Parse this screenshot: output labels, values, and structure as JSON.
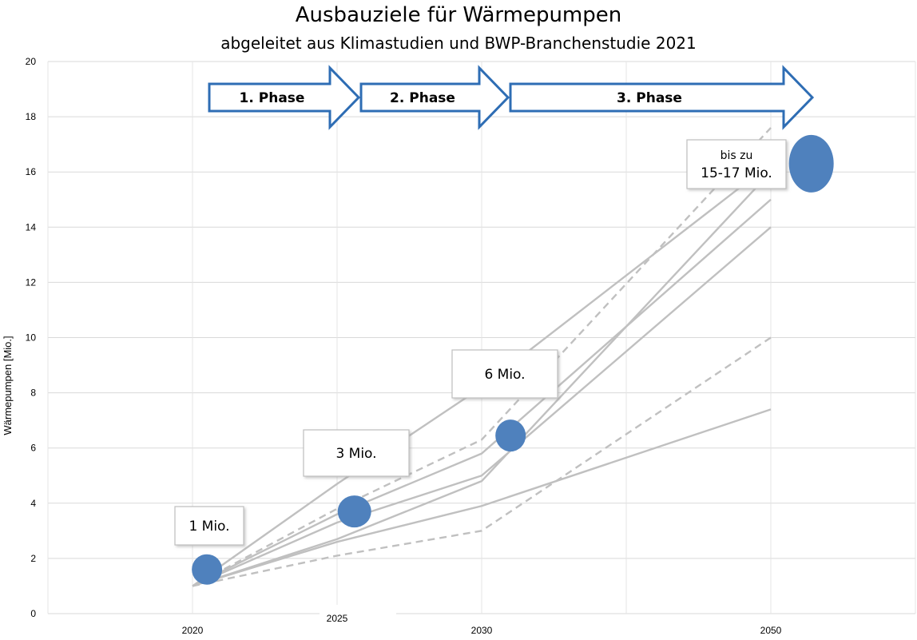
{
  "chart_data": {
    "type": "line",
    "title": "Ausbauziele für Wärmepumpen",
    "subtitle": "abgeleitet aus Klimastudien und BWP-Branchenstudie 2021",
    "ylabel": "Wärmepumpen [Mio.]",
    "xlabel": "",
    "ylim": [
      0,
      20
    ],
    "y_ticks": [
      0,
      2,
      4,
      6,
      8,
      10,
      12,
      14,
      16,
      18,
      20
    ],
    "x_ticks": [
      "2020",
      "2025",
      "2030",
      "2050"
    ],
    "grid": true,
    "series": [
      {
        "style": "solid",
        "points": [
          [
            "2020",
            1.0
          ],
          [
            "2025",
            4.7
          ],
          [
            "2030",
            8.2
          ],
          [
            "2050",
            16.3
          ]
        ]
      },
      {
        "style": "solid",
        "points": [
          [
            "2020",
            1.0
          ],
          [
            "2025",
            3.6
          ],
          [
            "2030",
            5.8
          ],
          [
            "2050",
            15.0
          ]
        ]
      },
      {
        "style": "solid",
        "points": [
          [
            "2020",
            1.0
          ],
          [
            "2025",
            3.3
          ],
          [
            "2030",
            5.0
          ],
          [
            "2050",
            14.0
          ]
        ]
      },
      {
        "style": "solid",
        "points": [
          [
            "2020",
            1.0
          ],
          [
            "2025",
            2.7
          ],
          [
            "2030",
            4.8
          ],
          [
            "2050",
            16.0
          ]
        ]
      },
      {
        "style": "solid",
        "points": [
          [
            "2020",
            1.0
          ],
          [
            "2025",
            2.6
          ],
          [
            "2030",
            3.9
          ],
          [
            "2050",
            7.4
          ]
        ]
      },
      {
        "style": "dashed",
        "points": [
          [
            "2020",
            1.0
          ],
          [
            "2025",
            3.8
          ],
          [
            "2030",
            6.3
          ],
          [
            "2050",
            17.6
          ]
        ]
      },
      {
        "style": "dashed",
        "points": [
          [
            "2020",
            1.0
          ],
          [
            "2025",
            2.1
          ],
          [
            "2030",
            3.0
          ],
          [
            "2050",
            10.0
          ]
        ]
      }
    ],
    "series_color": "#c0c0c0",
    "markers": [
      {
        "x": 2020.5,
        "y": 1.6,
        "color": "#4f81bd"
      },
      {
        "x": 2025.6,
        "y": 3.7,
        "color": "#4f81bd"
      },
      {
        "x": 2031.0,
        "y": 6.45,
        "color": "#4f81bd"
      },
      {
        "x": 2051.4,
        "y": 16.3,
        "color": "#4f81bd"
      }
    ],
    "annotations": [
      {
        "lines": [
          "1 Mio."
        ]
      },
      {
        "lines": [
          "3 Mio."
        ]
      },
      {
        "lines": [
          "6 Mio."
        ]
      },
      {
        "lines": [
          "bis zu",
          "15-17 Mio."
        ]
      }
    ],
    "phases": [
      {
        "label": "1. Phase"
      },
      {
        "label": "2. Phase"
      },
      {
        "label": "3. Phase"
      }
    ],
    "phase_arrow_color": "#2e6db4"
  }
}
